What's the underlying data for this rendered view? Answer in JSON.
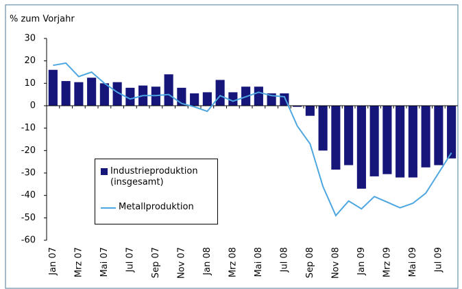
{
  "chart_data": {
    "type": "bar-line",
    "y_label": "% zum Vorjahr",
    "categories": [
      "Jan 07",
      null,
      "Mrz 07",
      null,
      "Mai 07",
      null,
      "Jul 07",
      null,
      "Sep 07",
      null,
      "Nov 07",
      null,
      "Jan 08",
      null,
      "Mrz 08",
      null,
      "Mai 08",
      null,
      "Jul 08",
      null,
      "Sep 08",
      null,
      "Nov 08",
      null,
      "Jan 09",
      null,
      "Mrz 09",
      null,
      "Mai 09",
      null,
      "Jul 09",
      null
    ],
    "series": [
      {
        "name": "Industrieproduktion (insgesamt)",
        "type": "bar",
        "color": "#15157a",
        "values": [
          16,
          11,
          10.5,
          12.5,
          10,
          10.5,
          8,
          9,
          8.5,
          14,
          8,
          5.5,
          6,
          11.5,
          6,
          8.5,
          8.5,
          5.5,
          5.5,
          -0.5,
          -4.5,
          -20,
          -28.5,
          -26.5,
          -37,
          -31.5,
          -30.5,
          -32,
          -32,
          -27.5,
          -26.5,
          -23.5
        ]
      },
      {
        "name": "Metallproduktion",
        "type": "line",
        "color": "#4da6e0",
        "values": [
          18,
          19,
          13,
          15,
          10,
          6,
          3,
          4.5,
          4.5,
          5,
          1,
          -0.5,
          -2.5,
          4.5,
          2,
          4,
          6,
          4.5,
          4,
          -9,
          -17,
          -36,
          -49,
          -42.5,
          -46,
          -40.5,
          -43,
          -45.5,
          -43.5,
          -39,
          -30,
          -21
        ]
      }
    ],
    "ylim": [
      -60,
      30
    ],
    "yticks": [
      -60,
      -50,
      -40,
      -30,
      -20,
      -10,
      0,
      10,
      20,
      30
    ]
  }
}
